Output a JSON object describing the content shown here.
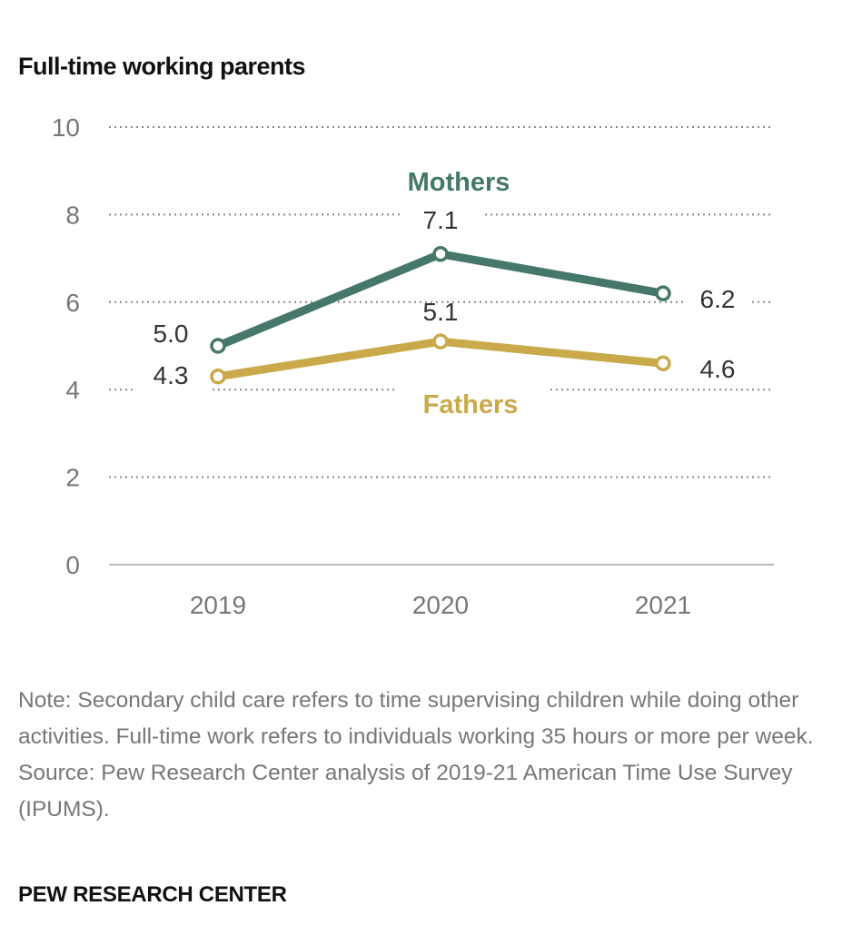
{
  "chart_data": {
    "type": "line",
    "title": "Full-time working parents",
    "categories": [
      "2019",
      "2020",
      "2021"
    ],
    "ylim": [
      0,
      10
    ],
    "yticks": [
      0,
      2,
      4,
      6,
      8,
      10
    ],
    "grid": true,
    "series": [
      {
        "name": "Mothers",
        "values": [
          5.0,
          7.1,
          6.2
        ],
        "labels": [
          "5.0",
          "7.1",
          "6.2"
        ],
        "color": "#45786a"
      },
      {
        "name": "Fathers",
        "values": [
          4.3,
          5.1,
          4.6
        ],
        "labels": [
          "4.3",
          "5.1",
          "4.6"
        ],
        "color": "#c9a94a"
      }
    ]
  },
  "note": [
    "Note: Secondary child care refers to time supervising children while doing other activities. Full-time work refers to individuals working 35 hours or more per week.",
    "Source: Pew Research Center analysis of 2019-21 American Time Use Survey (IPUMS)."
  ],
  "brand": "PEW RESEARCH CENTER"
}
